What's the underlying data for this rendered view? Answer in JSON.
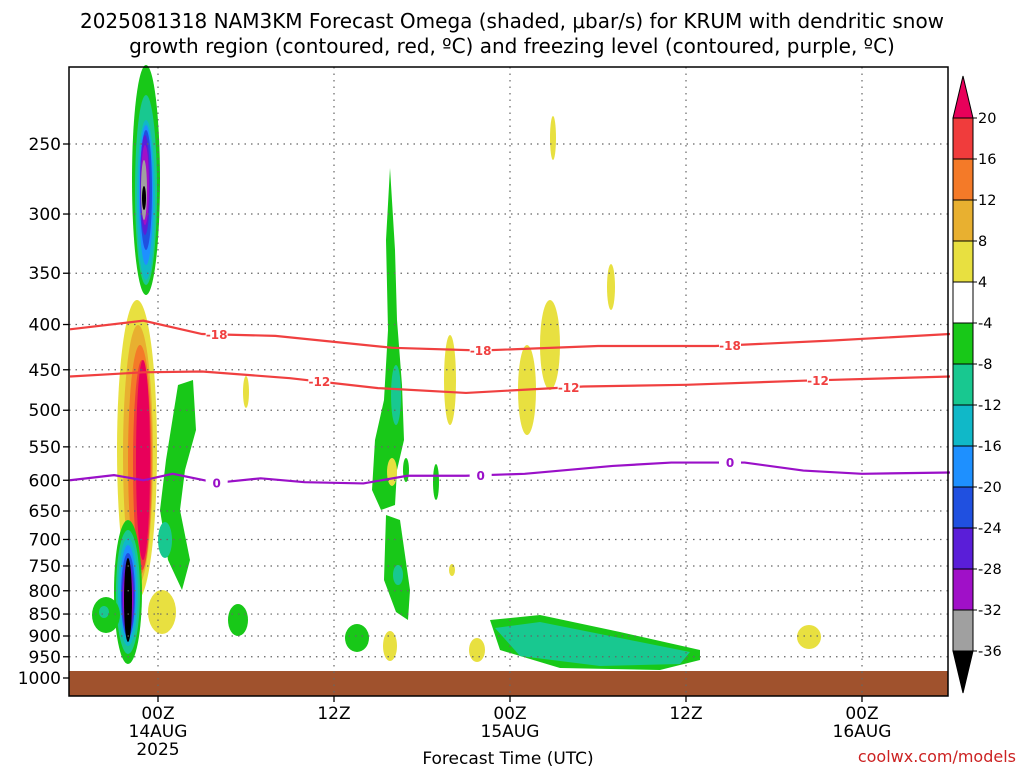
{
  "title_line1": "2025081318 NAM3KM Forecast Omega (shaded, μbar/s) for KRUM with dendritic snow",
  "title_line2": "growth region (contoured, red, ºC) and freezing level (contoured, purple, ºC)",
  "xlabel": "Forecast Time (UTC)",
  "credit": "coolwx.com/models",
  "x_ticks": [
    {
      "label": "00Z",
      "sub": "14AUG",
      "sub2": "2025",
      "hour": 6
    },
    {
      "label": "12Z",
      "sub": "",
      "sub2": "",
      "hour": 18
    },
    {
      "label": "00Z",
      "sub": "15AUG",
      "sub2": "",
      "hour": 30
    },
    {
      "label": "12Z",
      "sub": "",
      "sub2": "",
      "hour": 42
    },
    {
      "label": "00Z",
      "sub": "16AUG",
      "sub2": "",
      "hour": 54
    }
  ],
  "y_ticks": [
    {
      "label": "250",
      "p": 250
    },
    {
      "label": "300",
      "p": 300
    },
    {
      "label": "350",
      "p": 350
    },
    {
      "label": "400",
      "p": 400
    },
    {
      "label": "450",
      "p": 450
    },
    {
      "label": "500",
      "p": 500
    },
    {
      "label": "550",
      "p": 550
    },
    {
      "label": "600",
      "p": 600
    },
    {
      "label": "650",
      "p": 650
    },
    {
      "label": "700",
      "p": 700
    },
    {
      "label": "750",
      "p": 750
    },
    {
      "label": "800",
      "p": 800
    },
    {
      "label": "850",
      "p": 850
    },
    {
      "label": "900",
      "p": 900
    },
    {
      "label": "950",
      "p": 950
    },
    {
      "label": "1000",
      "p": 1000
    }
  ],
  "colorbar": [
    {
      "label": "20",
      "color": "#e8005a"
    },
    {
      "label": "16",
      "color": "#f03c3c"
    },
    {
      "label": "12",
      "color": "#f47a28"
    },
    {
      "label": "8",
      "color": "#e8b030"
    },
    {
      "label": "4",
      "color": "#e8e040"
    },
    {
      "label": "-4",
      "color": "#ffffff"
    },
    {
      "label": "-8",
      "color": "#18c818"
    },
    {
      "label": "-12",
      "color": "#18c890"
    },
    {
      "label": "-16",
      "color": "#10b8c8"
    },
    {
      "label": "-20",
      "color": "#1e90ff"
    },
    {
      "label": "-24",
      "color": "#2050e0"
    },
    {
      "label": "-28",
      "color": "#5a1ed8"
    },
    {
      "label": "-32",
      "color": "#a010c8"
    },
    {
      "label": "-36",
      "color": "#a0a0a0"
    }
  ],
  "colors": {
    "dgz": "#f04040",
    "freezing": "#9a10c8",
    "ground": "#a0522d",
    "grid": "#666666"
  },
  "chart_data": {
    "type": "heatmap",
    "title": "2025081318 NAM3KM Forecast Omega (shaded, μbar/s) for KRUM with dendritic snow growth region (contoured, red, ºC) and freezing level (contoured, purple, ºC)",
    "xlabel": "Forecast Time (UTC)",
    "ylabel": "",
    "x_range_hours": [
      0,
      60
    ],
    "y_range_hPa": [
      200,
      1030
    ],
    "y_scale": "log-pressure",
    "grid": "dotted",
    "contours": [
      {
        "label": "-18",
        "color": "red",
        "points": [
          [
            0,
            405
          ],
          [
            5,
            396
          ],
          [
            9,
            410
          ],
          [
            14,
            412
          ],
          [
            22,
            425
          ],
          [
            28,
            428
          ],
          [
            36,
            423
          ],
          [
            44,
            423
          ],
          [
            52,
            417
          ],
          [
            60,
            410
          ]
        ],
        "labels_at": [
          10,
          28,
          45
        ]
      },
      {
        "label": "-12",
        "color": "red",
        "points": [
          [
            0,
            458
          ],
          [
            5,
            453
          ],
          [
            9,
            452
          ],
          [
            15,
            460
          ],
          [
            21,
            472
          ],
          [
            27,
            478
          ],
          [
            35,
            470
          ],
          [
            42,
            468
          ],
          [
            50,
            463
          ],
          [
            60,
            458
          ]
        ],
        "labels_at": [
          17,
          34,
          51
        ]
      },
      {
        "label": "0",
        "color": "purple",
        "points": [
          [
            0,
            600
          ],
          [
            3,
            592
          ],
          [
            5,
            600
          ],
          [
            7,
            590
          ],
          [
            10,
            604
          ],
          [
            13,
            597
          ],
          [
            16,
            603
          ],
          [
            20,
            605
          ],
          [
            23,
            593
          ],
          [
            27,
            593
          ],
          [
            31,
            590
          ],
          [
            37,
            578
          ],
          [
            41,
            573
          ],
          [
            46,
            573
          ],
          [
            50,
            585
          ],
          [
            54,
            590
          ],
          [
            60,
            588
          ]
        ],
        "labels_at": [
          10,
          28,
          45
        ]
      }
    ],
    "omega_regions": [
      {
        "value_class": "< -36",
        "approx_hour": 4,
        "p_range": [
          730,
          900
        ]
      },
      {
        "value_class": "< -36",
        "approx_hour": 5,
        "p_range": [
          250,
          320
        ]
      },
      {
        "value_class": "> 20",
        "approx_hour": 5,
        "p_range": [
          400,
          760
        ]
      },
      {
        "value_class": "-12 to -8",
        "approx_hour": 36,
        "p_range": [
          870,
          960
        ]
      }
    ]
  }
}
